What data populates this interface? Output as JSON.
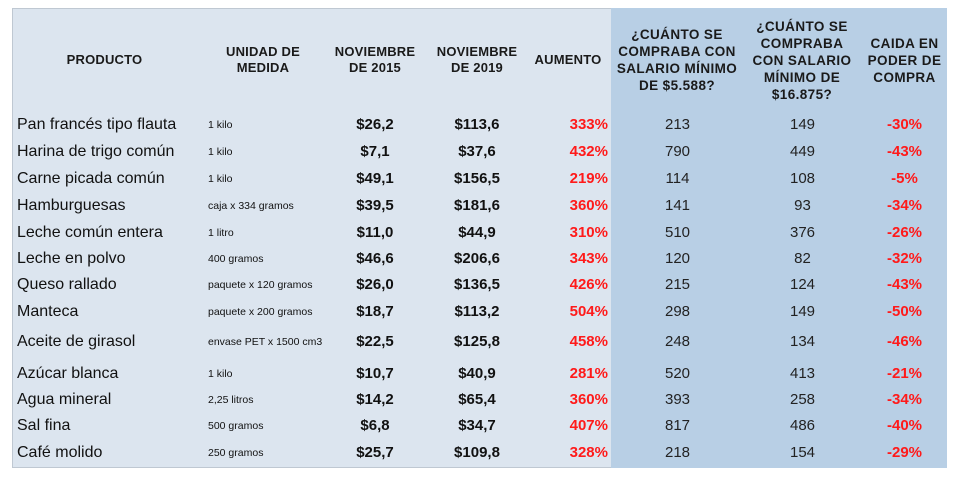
{
  "headers": {
    "producto": "PRODUCTO",
    "unidad": "UNIDAD DE\nMEDIDA",
    "nov2015": "NOVIEMBRE\nDE 2015",
    "nov2019": "NOVIEMBRE\nDE 2019",
    "aumento": "AUMENTO",
    "cuanto_min": "¿CUÁNTO SE\nCOMPRABA CON\nSALARIO MÍNIMO\nDE $5.588?",
    "cuanto_new": "¿CUÁNTO SE\nCOMPRABA\nCON SALARIO\nMÍNIMO DE\n$16.875?",
    "caida": "CAIDA EN\nPODER DE\nCOMPRA"
  },
  "rows": [
    {
      "producto": "Pan francés tipo flauta",
      "unidad": "1 kilo",
      "nov2015": "$26,2",
      "nov2019": "$113,6",
      "aumento": "333%",
      "cuanto_min": "213",
      "cuanto_new": "149",
      "caida": "-30%"
    },
    {
      "producto": "Harina de trigo común",
      "unidad": "1 kilo",
      "nov2015": "$7,1",
      "nov2019": "$37,6",
      "aumento": "432%",
      "cuanto_min": "790",
      "cuanto_new": "449",
      "caida": "-43%"
    },
    {
      "producto": "Carne picada común",
      "unidad": "1 kilo",
      "nov2015": "$49,1",
      "nov2019": "$156,5",
      "aumento": "219%",
      "cuanto_min": "114",
      "cuanto_new": "108",
      "caida": "-5%"
    },
    {
      "producto": "Hamburguesas",
      "unidad": "caja x 334 gramos",
      "nov2015": "$39,5",
      "nov2019": "$181,6",
      "aumento": "360%",
      "cuanto_min": "141",
      "cuanto_new": "93",
      "caida": "-34%"
    },
    {
      "producto": "Leche común entera",
      "unidad": "1 litro",
      "nov2015": "$11,0",
      "nov2019": "$44,9",
      "aumento": "310%",
      "cuanto_min": "510",
      "cuanto_new": "376",
      "caida": "-26%"
    },
    {
      "producto": "Leche en polvo",
      "unidad": "400 gramos",
      "nov2015": "$46,6",
      "nov2019": "$206,6",
      "aumento": "343%",
      "cuanto_min": "120",
      "cuanto_new": "82",
      "caida": "-32%"
    },
    {
      "producto": "Queso rallado",
      "unidad": "paquete x 120 gramos",
      "nov2015": "$26,0",
      "nov2019": "$136,5",
      "aumento": "426%",
      "cuanto_min": "215",
      "cuanto_new": "124",
      "caida": "-43%"
    },
    {
      "producto": "Manteca",
      "unidad": "paquete x 200 gramos",
      "nov2015": "$18,7",
      "nov2019": "$113,2",
      "aumento": "504%",
      "cuanto_min": "298",
      "cuanto_new": "149",
      "caida": "-50%"
    },
    {
      "producto": "Aceite de girasol",
      "unidad": "envase PET x 1500 cm3",
      "nov2015": "$22,5",
      "nov2019": "$125,8",
      "aumento": "458%",
      "cuanto_min": "248",
      "cuanto_new": "134",
      "caida": "-46%"
    },
    {
      "producto": "Azúcar blanca",
      "unidad": "1 kilo",
      "nov2015": "$10,7",
      "nov2019": "$40,9",
      "aumento": "281%",
      "cuanto_min": "520",
      "cuanto_new": "413",
      "caida": "-21%"
    },
    {
      "producto": "Agua mineral",
      "unidad": "2,25 litros",
      "nov2015": "$14,2",
      "nov2019": "$65,4",
      "aumento": "360%",
      "cuanto_min": "393",
      "cuanto_new": "258",
      "caida": "-34%"
    },
    {
      "producto": "Sal fina",
      "unidad": "500 gramos",
      "nov2015": "$6,8",
      "nov2019": "$34,7",
      "aumento": "407%",
      "cuanto_min": "817",
      "cuanto_new": "486",
      "caida": "-40%"
    },
    {
      "producto": "Café molido",
      "unidad": "250 gramos",
      "nov2015": "$25,7",
      "nov2019": "$109,8",
      "aumento": "328%",
      "cuanto_min": "218",
      "cuanto_new": "154",
      "caida": "-29%"
    }
  ],
  "colors": {
    "table_bg": "#dce5ef",
    "highlight_bg": "#b8cfe5",
    "negative_red": "#ff1a1a"
  }
}
